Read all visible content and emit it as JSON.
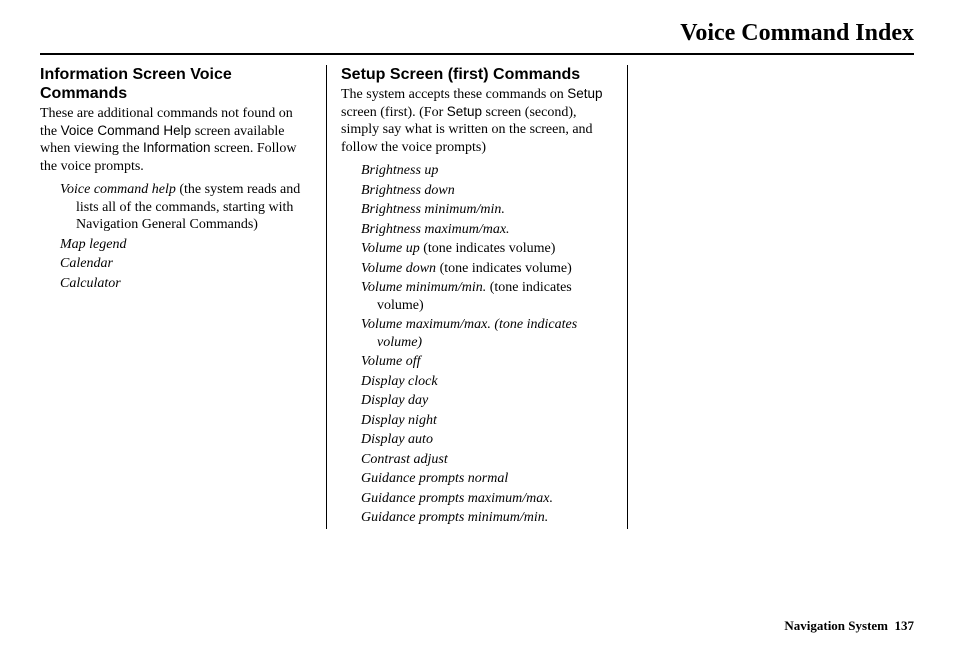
{
  "pageTitle": "Voice Command Index",
  "footerLabel": "Navigation System",
  "footerPage": "137",
  "col1": {
    "heading": "Information Screen Voice Commands",
    "intro_p1": "These are additional commands not found on the ",
    "intro_sans1": "Voice Command Help",
    "intro_p2": " screen available when viewing the ",
    "intro_sans2": "Information",
    "intro_p3": " screen. Follow the voice prompts.",
    "items": [
      {
        "cmd": "Voice command help",
        "note": " (the system reads and lists all of the commands, starting with Navigation General Commands)"
      },
      {
        "cmd": "Map legend",
        "note": ""
      },
      {
        "cmd": "Calendar",
        "note": ""
      },
      {
        "cmd": "Calculator",
        "note": ""
      }
    ]
  },
  "col2": {
    "heading": "Setup Screen (first) Commands",
    "intro_p1": "The system accepts these commands on ",
    "intro_sans1": "Setup",
    "intro_p2": " screen (first). (For ",
    "intro_sans2": "Setup",
    "intro_p3": " screen (second), simply say what is written on the screen, and follow the voice prompts)",
    "items": [
      {
        "cmd": "Brightness up",
        "note": ""
      },
      {
        "cmd": "Brightness down",
        "note": ""
      },
      {
        "cmd": "Brightness minimum/min.",
        "note": ""
      },
      {
        "cmd": "Brightness maximum/max.",
        "note": ""
      },
      {
        "cmd": "Volume up",
        "note": " (tone indicates volume)"
      },
      {
        "cmd": "Volume down",
        "note": " (tone indicates volume)"
      },
      {
        "cmd": "Volume minimum/min.",
        "note": " (tone indicates volume)"
      },
      {
        "cmd": "Volume maximum/max. (tone indicates volume)",
        "note": "",
        "allItalic": true
      },
      {
        "cmd": "Volume off",
        "note": ""
      },
      {
        "cmd": "Display clock",
        "note": ""
      },
      {
        "cmd": "Display day",
        "note": ""
      },
      {
        "cmd": "Display night",
        "note": ""
      },
      {
        "cmd": "Display auto",
        "note": ""
      },
      {
        "cmd": "Contrast adjust",
        "note": ""
      },
      {
        "cmd": "Guidance prompts normal",
        "note": ""
      },
      {
        "cmd": "Guidance prompts maximum/max.",
        "note": ""
      },
      {
        "cmd": "Guidance prompts minimum/min.",
        "note": ""
      }
    ]
  }
}
